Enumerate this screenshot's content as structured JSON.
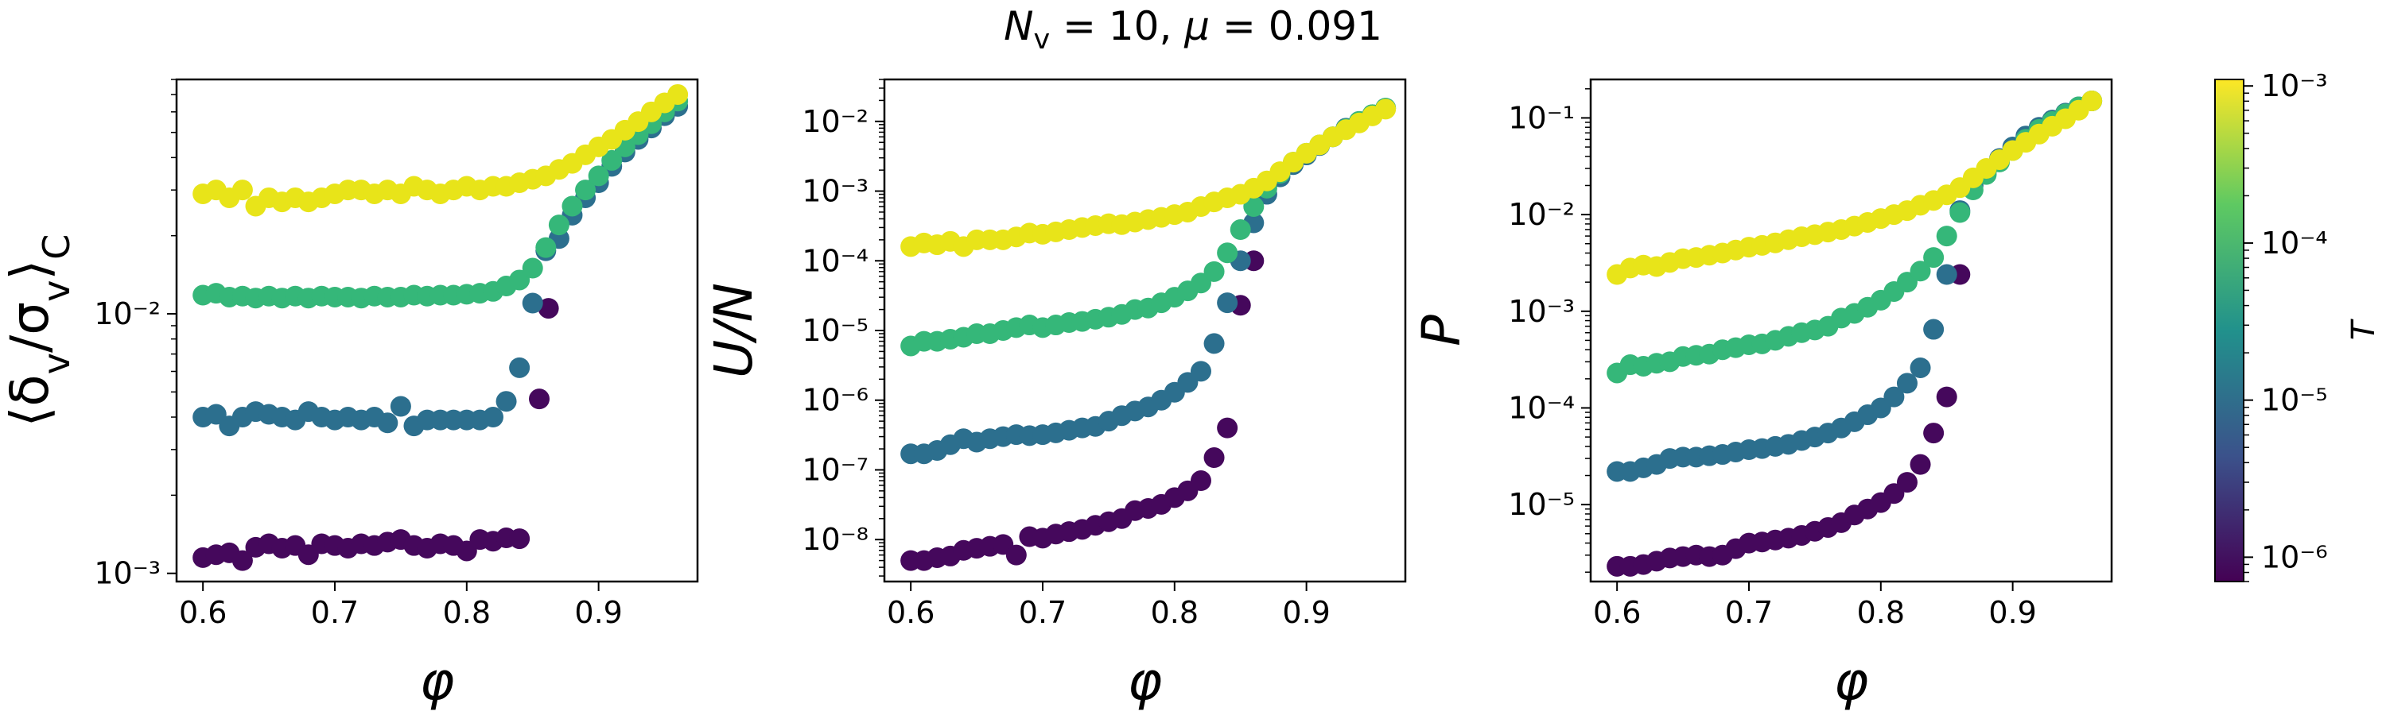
{
  "figure": {
    "suptitle": "N_v = 10, μ = 0.091",
    "colorbar": {
      "label": "T",
      "ticks": [
        "10⁻³",
        "10⁻⁴",
        "10⁻⁵",
        "10⁻⁶"
      ],
      "tick_values": [
        0.001,
        0.0001,
        1e-05,
        1e-06
      ],
      "range": [
        7e-07,
        0.0011
      ],
      "colormap": "viridis",
      "colors": [
        "#440154",
        "#3b528b",
        "#21918c",
        "#5ec962",
        "#fde725"
      ]
    }
  },
  "chart_data": [
    {
      "type": "scatter",
      "xlabel": "φ",
      "ylabel": "⟨δ_v/σ_v⟩_C",
      "yscale": "log",
      "xlim": [
        0.58,
        0.975
      ],
      "ylim": [
        0.00093,
        0.08
      ],
      "xticks": [
        "0.6",
        "0.7",
        "0.8",
        "0.9"
      ],
      "yticks": [
        "10⁻³",
        "10⁻²"
      ],
      "series": [
        {
          "T": 1e-06,
          "color": "#45085c",
          "x": [
            0.6,
            0.61,
            0.62,
            0.63,
            0.64,
            0.65,
            0.66,
            0.67,
            0.68,
            0.69,
            0.7,
            0.71,
            0.72,
            0.73,
            0.74,
            0.75,
            0.76,
            0.77,
            0.78,
            0.79,
            0.8,
            0.81,
            0.82,
            0.83,
            0.84,
            0.855,
            0.862
          ],
          "y": [
            0.00115,
            0.00118,
            0.0012,
            0.00112,
            0.00126,
            0.0013,
            0.00125,
            0.00128,
            0.00118,
            0.0013,
            0.00128,
            0.00125,
            0.0013,
            0.00128,
            0.00132,
            0.00135,
            0.00128,
            0.00125,
            0.0013,
            0.00128,
            0.00122,
            0.00135,
            0.00133,
            0.00137,
            0.00136,
            0.0047,
            0.0105
          ]
        },
        {
          "T": 1e-05,
          "color": "#2c6f8e",
          "x": [
            0.6,
            0.61,
            0.62,
            0.63,
            0.64,
            0.65,
            0.66,
            0.67,
            0.68,
            0.69,
            0.7,
            0.71,
            0.72,
            0.73,
            0.74,
            0.75,
            0.76,
            0.77,
            0.78,
            0.79,
            0.8,
            0.81,
            0.82,
            0.83,
            0.84,
            0.85,
            0.86,
            0.87,
            0.88,
            0.89,
            0.9,
            0.91,
            0.92,
            0.93,
            0.94,
            0.95,
            0.96
          ],
          "y": [
            0.004,
            0.0041,
            0.0037,
            0.004,
            0.0042,
            0.0041,
            0.004,
            0.0039,
            0.0042,
            0.004,
            0.0039,
            0.004,
            0.0039,
            0.004,
            0.0038,
            0.0044,
            0.0037,
            0.0039,
            0.0039,
            0.0039,
            0.0039,
            0.0039,
            0.004,
            0.0046,
            0.0062,
            0.011,
            0.0175,
            0.0195,
            0.024,
            0.028,
            0.032,
            0.037,
            0.042,
            0.047,
            0.052,
            0.058,
            0.063
          ]
        },
        {
          "T": 0.0001,
          "color": "#35b779",
          "x": [
            0.6,
            0.61,
            0.62,
            0.63,
            0.64,
            0.65,
            0.66,
            0.67,
            0.68,
            0.69,
            0.7,
            0.71,
            0.72,
            0.73,
            0.74,
            0.75,
            0.76,
            0.77,
            0.78,
            0.79,
            0.8,
            0.81,
            0.82,
            0.83,
            0.84,
            0.85,
            0.86,
            0.87,
            0.88,
            0.89,
            0.9,
            0.91,
            0.92,
            0.93,
            0.94,
            0.95,
            0.96
          ],
          "y": [
            0.0118,
            0.012,
            0.0116,
            0.0117,
            0.0115,
            0.0117,
            0.0115,
            0.0117,
            0.0115,
            0.0117,
            0.0116,
            0.0116,
            0.0115,
            0.0117,
            0.0116,
            0.0116,
            0.0118,
            0.0117,
            0.0118,
            0.0118,
            0.0119,
            0.012,
            0.0122,
            0.0128,
            0.0135,
            0.015,
            0.018,
            0.022,
            0.026,
            0.03,
            0.034,
            0.039,
            0.044,
            0.049,
            0.054,
            0.06,
            0.066
          ]
        },
        {
          "T": 0.001,
          "color": "#e8e419",
          "x": [
            0.6,
            0.61,
            0.62,
            0.63,
            0.64,
            0.65,
            0.66,
            0.67,
            0.68,
            0.69,
            0.7,
            0.71,
            0.72,
            0.73,
            0.74,
            0.75,
            0.76,
            0.77,
            0.78,
            0.79,
            0.8,
            0.81,
            0.82,
            0.83,
            0.84,
            0.85,
            0.86,
            0.87,
            0.88,
            0.89,
            0.9,
            0.91,
            0.92,
            0.93,
            0.94,
            0.95,
            0.96
          ],
          "y": [
            0.029,
            0.03,
            0.028,
            0.03,
            0.026,
            0.028,
            0.027,
            0.028,
            0.027,
            0.028,
            0.029,
            0.03,
            0.03,
            0.029,
            0.03,
            0.029,
            0.031,
            0.03,
            0.029,
            0.03,
            0.031,
            0.03,
            0.031,
            0.031,
            0.032,
            0.033,
            0.034,
            0.036,
            0.038,
            0.041,
            0.044,
            0.047,
            0.051,
            0.055,
            0.06,
            0.065,
            0.07
          ]
        }
      ]
    },
    {
      "type": "scatter",
      "xlabel": "φ",
      "ylabel": "U/N",
      "yscale": "log",
      "xlim": [
        0.58,
        0.975
      ],
      "ylim": [
        2.5e-09,
        0.04
      ],
      "xticks": [
        "0.6",
        "0.7",
        "0.8",
        "0.9"
      ],
      "yticks": [
        "10⁻⁸",
        "10⁻⁷",
        "10⁻⁶",
        "10⁻⁵",
        "10⁻⁴",
        "10⁻³",
        "10⁻²"
      ],
      "series": [
        {
          "T": 1e-06,
          "color": "#45085c",
          "x": [
            0.6,
            0.61,
            0.62,
            0.63,
            0.64,
            0.65,
            0.66,
            0.67,
            0.68,
            0.69,
            0.7,
            0.71,
            0.72,
            0.73,
            0.74,
            0.75,
            0.76,
            0.77,
            0.78,
            0.79,
            0.8,
            0.81,
            0.82,
            0.83,
            0.84,
            0.85,
            0.86
          ],
          "y": [
            5e-09,
            5e-09,
            5.5e-09,
            5.8e-09,
            7e-09,
            7.5e-09,
            8e-09,
            8.5e-09,
            6e-09,
            1.1e-08,
            1.05e-08,
            1.2e-08,
            1.3e-08,
            1.4e-08,
            1.6e-08,
            1.8e-08,
            2e-08,
            2.6e-08,
            2.8e-08,
            3.2e-08,
            4e-08,
            5e-08,
            7e-08,
            1.5e-07,
            4e-07,
            2.3e-05,
            0.0001
          ]
        },
        {
          "T": 1e-05,
          "color": "#2c6f8e",
          "x": [
            0.6,
            0.61,
            0.62,
            0.63,
            0.64,
            0.65,
            0.66,
            0.67,
            0.68,
            0.69,
            0.7,
            0.71,
            0.72,
            0.73,
            0.74,
            0.75,
            0.76,
            0.77,
            0.78,
            0.79,
            0.8,
            0.81,
            0.82,
            0.83,
            0.84,
            0.85,
            0.86,
            0.87,
            0.88,
            0.89,
            0.9,
            0.91,
            0.92,
            0.93,
            0.94,
            0.95,
            0.96
          ],
          "y": [
            1.7e-07,
            1.7e-07,
            1.9e-07,
            2.3e-07,
            2.8e-07,
            2.5e-07,
            2.8e-07,
            3e-07,
            3.2e-07,
            3.1e-07,
            3.2e-07,
            3.4e-07,
            3.7e-07,
            4e-07,
            4.2e-07,
            5e-07,
            6e-07,
            7e-07,
            8e-07,
            1e-06,
            1.3e-06,
            1.8e-06,
            2.6e-06,
            6.5e-06,
            2.5e-05,
            0.0001,
            0.00035,
            0.0009,
            0.0016,
            0.0024,
            0.0033,
            0.0045,
            0.006,
            0.008,
            0.01,
            0.0125,
            0.0155
          ]
        },
        {
          "T": 0.0001,
          "color": "#35b779",
          "x": [
            0.6,
            0.61,
            0.62,
            0.63,
            0.64,
            0.65,
            0.66,
            0.67,
            0.68,
            0.69,
            0.7,
            0.71,
            0.72,
            0.73,
            0.74,
            0.75,
            0.76,
            0.77,
            0.78,
            0.79,
            0.8,
            0.81,
            0.82,
            0.83,
            0.84,
            0.85,
            0.86,
            0.87,
            0.88,
            0.89,
            0.9,
            0.91,
            0.92,
            0.93,
            0.94,
            0.95,
            0.96
          ],
          "y": [
            6e-06,
            7e-06,
            7e-06,
            7.5e-06,
            8e-06,
            9e-06,
            9e-06,
            1e-05,
            1.1e-05,
            1.2e-05,
            1.1e-05,
            1.2e-05,
            1.3e-05,
            1.35e-05,
            1.45e-05,
            1.55e-05,
            1.7e-05,
            2e-05,
            2.1e-05,
            2.5e-05,
            3e-05,
            3.7e-05,
            4.8e-05,
            7e-05,
            0.00013,
            0.00028,
            0.0006,
            0.0011,
            0.0018,
            0.0026,
            0.0035,
            0.0046,
            0.006,
            0.0078,
            0.01,
            0.0125,
            0.0155
          ]
        },
        {
          "T": 0.001,
          "color": "#e8e419",
          "x": [
            0.6,
            0.61,
            0.62,
            0.63,
            0.64,
            0.65,
            0.66,
            0.67,
            0.68,
            0.69,
            0.7,
            0.71,
            0.72,
            0.73,
            0.74,
            0.75,
            0.76,
            0.77,
            0.78,
            0.79,
            0.8,
            0.81,
            0.82,
            0.83,
            0.84,
            0.85,
            0.86,
            0.87,
            0.88,
            0.89,
            0.9,
            0.91,
            0.92,
            0.93,
            0.94,
            0.95,
            0.96
          ],
          "y": [
            0.00016,
            0.00018,
            0.00017,
            0.00019,
            0.00016,
            0.0002,
            0.0002,
            0.0002,
            0.00022,
            0.00025,
            0.00024,
            0.00026,
            0.00028,
            0.0003,
            0.00032,
            0.00034,
            0.00033,
            0.00036,
            0.00039,
            0.00042,
            0.00046,
            0.0005,
            0.0006,
            0.0007,
            0.0008,
            0.0009,
            0.0011,
            0.0014,
            0.0019,
            0.0026,
            0.0035,
            0.0046,
            0.006,
            0.0076,
            0.0095,
            0.012,
            0.015
          ]
        }
      ]
    },
    {
      "type": "scatter",
      "xlabel": "φ",
      "ylabel": "P",
      "yscale": "log",
      "xlim": [
        0.58,
        0.975
      ],
      "ylim": [
        1.6e-06,
        0.25
      ],
      "xticks": [
        "0.6",
        "0.7",
        "0.8",
        "0.9"
      ],
      "yticks": [
        "10⁻⁵",
        "10⁻⁴",
        "10⁻³",
        "10⁻²",
        "10⁻¹"
      ],
      "series": [
        {
          "T": 1e-06,
          "color": "#45085c",
          "x": [
            0.6,
            0.61,
            0.62,
            0.63,
            0.64,
            0.65,
            0.66,
            0.67,
            0.68,
            0.69,
            0.7,
            0.71,
            0.72,
            0.73,
            0.74,
            0.75,
            0.76,
            0.77,
            0.78,
            0.79,
            0.8,
            0.81,
            0.82,
            0.83,
            0.84,
            0.85,
            0.86
          ],
          "y": [
            2.3e-06,
            2.3e-06,
            2.4e-06,
            2.6e-06,
            2.8e-06,
            2.9e-06,
            3e-06,
            2.9e-06,
            3e-06,
            3.5e-06,
            4e-06,
            4.1e-06,
            4.3e-06,
            4.5e-06,
            4.8e-06,
            5.3e-06,
            5.8e-06,
            6.5e-06,
            7.8e-06,
            9e-06,
            1.05e-05,
            1.3e-05,
            1.7e-05,
            2.6e-05,
            5.5e-05,
            0.00013,
            0.0024
          ]
        },
        {
          "T": 1e-05,
          "color": "#2c6f8e",
          "x": [
            0.6,
            0.61,
            0.62,
            0.63,
            0.64,
            0.65,
            0.66,
            0.67,
            0.68,
            0.69,
            0.7,
            0.71,
            0.72,
            0.73,
            0.74,
            0.75,
            0.76,
            0.77,
            0.78,
            0.79,
            0.8,
            0.81,
            0.82,
            0.83,
            0.84,
            0.85,
            0.86,
            0.87,
            0.88,
            0.89,
            0.9,
            0.91,
            0.92,
            0.93,
            0.94,
            0.95,
            0.96
          ],
          "y": [
            2.2e-05,
            2.2e-05,
            2.4e-05,
            2.6e-05,
            3e-05,
            3.1e-05,
            3.1e-05,
            3.2e-05,
            3.3e-05,
            3.5e-05,
            3.7e-05,
            3.8e-05,
            4e-05,
            4.2e-05,
            4.6e-05,
            5e-05,
            5.5e-05,
            6.2e-05,
            7.2e-05,
            8.5e-05,
            0.0001,
            0.00013,
            0.00018,
            0.00026,
            0.00065,
            0.0024,
            0.011,
            0.02,
            0.028,
            0.038,
            0.05,
            0.065,
            0.08,
            0.095,
            0.112,
            0.13,
            0.15
          ]
        },
        {
          "T": 0.0001,
          "color": "#35b779",
          "x": [
            0.6,
            0.61,
            0.62,
            0.63,
            0.64,
            0.65,
            0.66,
            0.67,
            0.68,
            0.69,
            0.7,
            0.71,
            0.72,
            0.73,
            0.74,
            0.75,
            0.76,
            0.77,
            0.78,
            0.79,
            0.8,
            0.81,
            0.82,
            0.83,
            0.84,
            0.85,
            0.86,
            0.87,
            0.88,
            0.89,
            0.9,
            0.91,
            0.92,
            0.93,
            0.94,
            0.95,
            0.96
          ],
          "y": [
            0.00023,
            0.00028,
            0.00027,
            0.00029,
            0.0003,
            0.00034,
            0.00035,
            0.00036,
            0.0004,
            0.00042,
            0.00045,
            0.00046,
            0.0005,
            0.00055,
            0.0006,
            0.00064,
            0.0007,
            0.00085,
            0.00095,
            0.0011,
            0.0013,
            0.0016,
            0.002,
            0.0026,
            0.0036,
            0.006,
            0.0105,
            0.018,
            0.026,
            0.035,
            0.046,
            0.06,
            0.076,
            0.092,
            0.11,
            0.13,
            0.15
          ]
        },
        {
          "T": 0.001,
          "color": "#e8e419",
          "x": [
            0.6,
            0.61,
            0.62,
            0.63,
            0.64,
            0.65,
            0.66,
            0.67,
            0.68,
            0.69,
            0.7,
            0.71,
            0.72,
            0.73,
            0.74,
            0.75,
            0.76,
            0.77,
            0.78,
            0.79,
            0.8,
            0.81,
            0.82,
            0.83,
            0.84,
            0.85,
            0.86,
            0.87,
            0.88,
            0.89,
            0.9,
            0.91,
            0.92,
            0.93,
            0.94,
            0.95,
            0.96
          ],
          "y": [
            0.0024,
            0.0028,
            0.003,
            0.0029,
            0.0032,
            0.0035,
            0.0036,
            0.0038,
            0.004,
            0.0043,
            0.0046,
            0.0048,
            0.0051,
            0.0055,
            0.0059,
            0.0062,
            0.0066,
            0.007,
            0.0076,
            0.0083,
            0.0091,
            0.01,
            0.011,
            0.0125,
            0.014,
            0.016,
            0.019,
            0.024,
            0.03,
            0.037,
            0.046,
            0.056,
            0.068,
            0.082,
            0.098,
            0.12,
            0.15
          ]
        }
      ]
    }
  ]
}
